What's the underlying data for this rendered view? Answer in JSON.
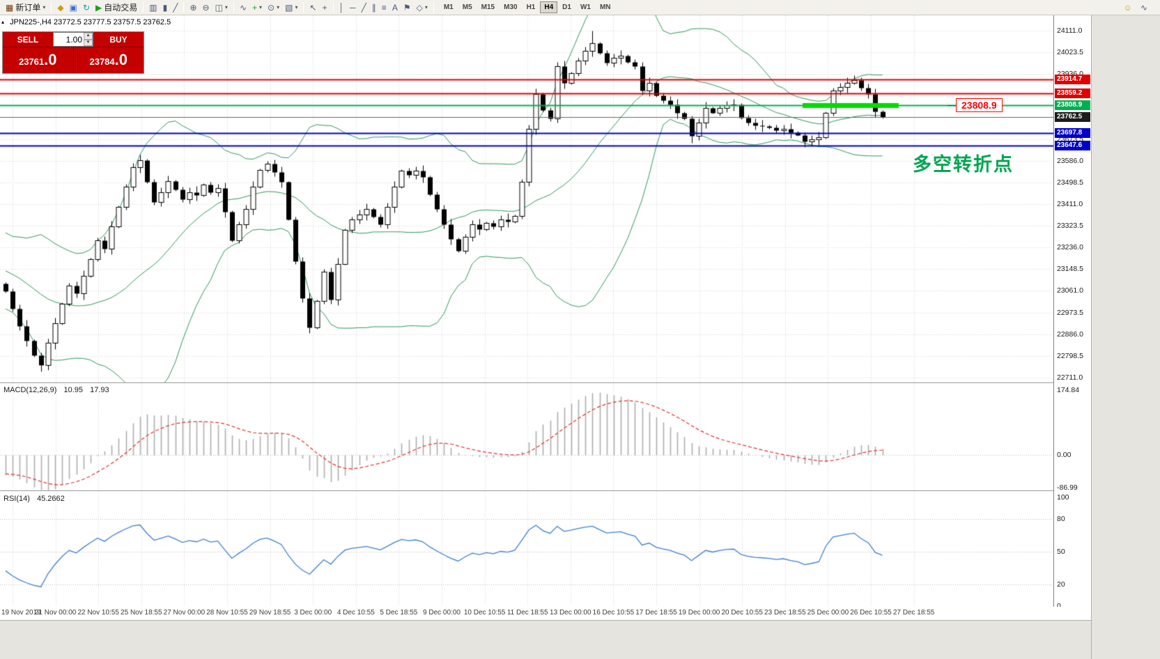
{
  "toolbar": {
    "icon_groups": [
      {
        "items": [
          {
            "icon": "chart-window",
            "label": "新订单",
            "dropdown": true
          }
        ]
      },
      {
        "items": [
          {
            "icon": "scripts"
          },
          {
            "icon": "market-watch"
          },
          {
            "icon": "refresh"
          },
          {
            "icon": "autotrading-play",
            "label": "自动交易"
          }
        ]
      },
      {
        "items": [
          {
            "icon": "bar-chart"
          },
          {
            "icon": "candle-chart"
          },
          {
            "icon": "line-chart"
          }
        ]
      },
      {
        "items": [
          {
            "icon": "zoom-in"
          },
          {
            "icon": "zoom-out"
          },
          {
            "icon": "tile-windows",
            "dropdown": true
          }
        ]
      },
      {
        "items": [
          {
            "icon": "indicators"
          },
          {
            "icon": "indicator-add",
            "dropdown": true
          },
          {
            "icon": "period",
            "dropdown": true
          },
          {
            "icon": "template",
            "dropdown": true
          }
        ]
      },
      {
        "items": [
          {
            "icon": "cursor"
          },
          {
            "icon": "crosshair"
          }
        ]
      },
      {
        "items": [
          {
            "icon": "vline"
          },
          {
            "icon": "hline"
          },
          {
            "icon": "trendline"
          },
          {
            "icon": "channel"
          },
          {
            "icon": "fibonacci"
          },
          {
            "icon": "text"
          },
          {
            "icon": "label"
          },
          {
            "icon": "shapes",
            "dropdown": true
          }
        ]
      }
    ],
    "timeframes": [
      "M1",
      "M5",
      "M15",
      "M30",
      "H1",
      "H4",
      "D1",
      "W1",
      "MN"
    ],
    "active_timeframe": "H4",
    "right_icons": [
      "smiley",
      "stats"
    ]
  },
  "chart_header": {
    "title_text": "JPN225-,H4 23772.5 23777.5 23757.5 23762.5"
  },
  "one_click": {
    "sell_label": "SELL",
    "buy_label": "BUY",
    "volume": "1.00",
    "sell_price": "23761.0",
    "buy_price": "23784.0"
  },
  "macd_panel": {
    "title": "MACD(12,26,9)",
    "value_main": "10.95",
    "value_signal": "17.93",
    "scale": [
      "174.84",
      "0.00",
      "-86.99"
    ]
  },
  "rsi_panel": {
    "title": "RSI(14)",
    "value": "45.2662",
    "scale": [
      "100",
      "80",
      "50",
      "20",
      "0"
    ]
  },
  "annotations": {
    "price_callout": "23808.9",
    "turning_point": "多空转折点"
  },
  "chart_data": {
    "type": "candlestick",
    "symbol": "JPN225-",
    "timeframe": "H4",
    "last_bar": {
      "open": 23772.5,
      "high": 23777.5,
      "low": 23757.5,
      "close": 23762.5
    },
    "y_axis": {
      "min": 22711.0,
      "max": 24111.0,
      "tick_step": 87.5
    },
    "y_ticks": [
      "24111.0",
      "24023.5",
      "23936.0",
      "23848.5",
      "23761.0",
      "23673.5",
      "23586.0",
      "23498.5",
      "23411.0",
      "23323.5",
      "23236.0",
      "23148.5",
      "23061.0",
      "22973.5",
      "22886.0",
      "22798.5",
      "22711.0"
    ],
    "x_labels": [
      "19 Nov 2019",
      "21 Nov 00:00",
      "22 Nov 10:55",
      "25 Nov 18:55",
      "27 Nov 00:00",
      "28 Nov 10:55",
      "29 Nov 18:55",
      "3 Dec 00:00",
      "4 Dec 10:55",
      "5 Dec 18:55",
      "9 Dec 00:00",
      "10 Dec 10:55",
      "11 Dec 18:55",
      "13 Dec 00:00",
      "16 Dec 10:55",
      "17 Dec 18:55",
      "19 Dec 00:00",
      "20 Dec 10:55",
      "23 Dec 18:55",
      "25 Dec 00:00",
      "26 Dec 10:55",
      "27 Dec 18:55"
    ],
    "pre_closes": [
      23300,
      23280,
      23250,
      23270,
      23230,
      23200,
      23220,
      23180,
      23150,
      23170,
      23130,
      23100,
      23120,
      23080,
      23060,
      23090,
      23050,
      23070,
      23030,
      23090
    ],
    "closes": [
      23060,
      22990,
      22920,
      22860,
      22800,
      22760,
      22850,
      22930,
      23010,
      23082,
      23050,
      23120,
      23190,
      23265,
      23230,
      23320,
      23400,
      23480,
      23560,
      23588,
      23500,
      23419,
      23460,
      23503,
      23470,
      23430,
      23460,
      23447,
      23490,
      23460,
      23475,
      23380,
      23265,
      23330,
      23391,
      23480,
      23550,
      23574,
      23540,
      23500,
      23350,
      23180,
      23030,
      22913,
      23020,
      23138,
      23026,
      23170,
      23307,
      23350,
      23370,
      23391,
      23360,
      23330,
      23400,
      23480,
      23546,
      23530,
      23545,
      23520,
      23450,
      23391,
      23330,
      23270,
      23222,
      23280,
      23330,
      23310,
      23335,
      23320,
      23350,
      23340,
      23363,
      23500,
      23715,
      23855,
      23790,
      23757,
      23967,
      23900,
      23939,
      23990,
      24030,
      24060,
      24020,
      23982,
      24000,
      24010,
      23985,
      23967,
      23869,
      23900,
      23850,
      23830,
      23813,
      23780,
      23757,
      23686,
      23740,
      23800,
      23780,
      23799,
      23810,
      23813,
      23760,
      23740,
      23729,
      23725,
      23720,
      23710,
      23715,
      23700,
      23690,
      23665,
      23672,
      23680,
      23780,
      23869,
      23884,
      23900,
      23912,
      23880,
      23855,
      23785,
      23762.5
    ],
    "wick_overrides": {
      "5": {
        "low": 22736
      },
      "83": {
        "high": 24111
      },
      "97": {
        "low": 23658
      },
      "113": {
        "low": 23642
      },
      "120": {
        "high": 23931
      }
    },
    "levels": [
      {
        "value": 23914.7,
        "label": "23914.7",
        "color": "#E00000",
        "width": 2
      },
      {
        "value": 23859.2,
        "label": "23859.2",
        "color": "#E00000",
        "width": 2
      },
      {
        "value": 23808.9,
        "label": "23808.9",
        "color": "#00B050",
        "width": 2
      },
      {
        "value": 23762.5,
        "label": "23762.5",
        "color": "#666666",
        "width": 1,
        "label_bg": "#1C1C1C",
        "kind": "bid"
      },
      {
        "value": 23697.8,
        "label": "23697.8",
        "color": "#0000C8",
        "width": 2
      },
      {
        "value": 23647.6,
        "label": "23647.6",
        "color": "#0000C8",
        "width": 2
      }
    ],
    "highlight": {
      "value": 23808.9,
      "start_bar": 113,
      "end_bar": 126,
      "color": "#00DC00"
    },
    "indicators": {
      "bollinger": {
        "period": 20,
        "deviation": 2,
        "color": "#2E9958"
      },
      "macd": {
        "fast": 12,
        "slow": 26,
        "signal": 9,
        "current_macd": 10.95,
        "current_signal": 17.93,
        "scale_max": 174.84,
        "scale_min": -86.99,
        "histogram_color": "#ADADAD",
        "signal_color": "#E03030"
      },
      "rsi": {
        "period": 14,
        "current": 45.2662,
        "levels": [
          80,
          50,
          20
        ],
        "color": "#3E7FD0"
      }
    }
  }
}
